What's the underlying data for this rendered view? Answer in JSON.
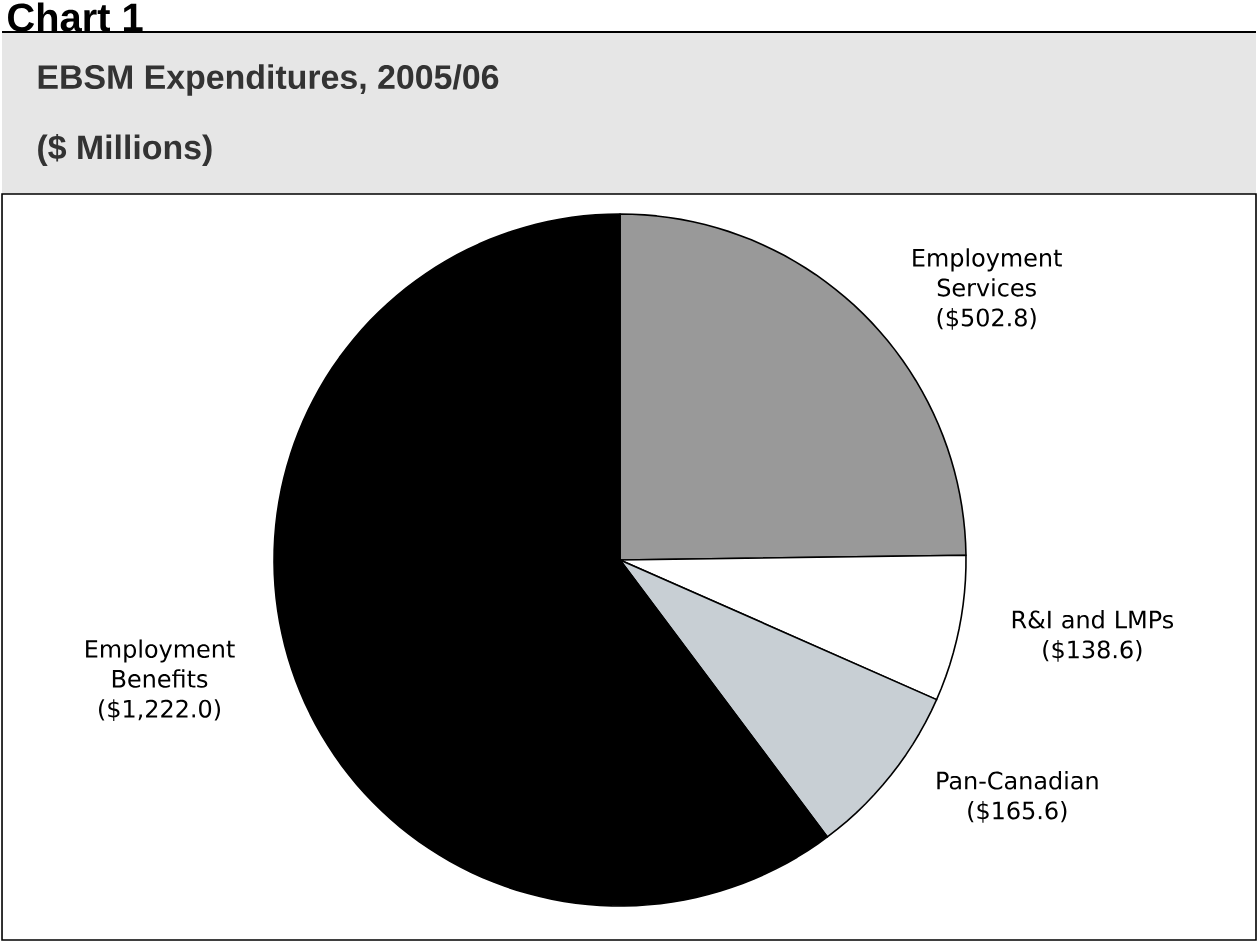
{
  "chart_data": {
    "type": "pie",
    "title": "EBSM Expenditures, 2005/06",
    "subtitle": "($ Millions)",
    "annotations": [
      "Chart 1"
    ],
    "categories": [
      "Employment Services",
      "R&I and LMPs",
      "Pan-Canadian",
      "Employment Benefits"
    ],
    "values": [
      502.8,
      138.6,
      165.6,
      1222.0
    ],
    "value_labels": [
      "($502.8)",
      "($138.6)",
      "($165.6)",
      "($1,222.0)"
    ],
    "colors": [
      "#999999",
      "#ffffff",
      "#c8cfd4",
      "#000000"
    ]
  }
}
